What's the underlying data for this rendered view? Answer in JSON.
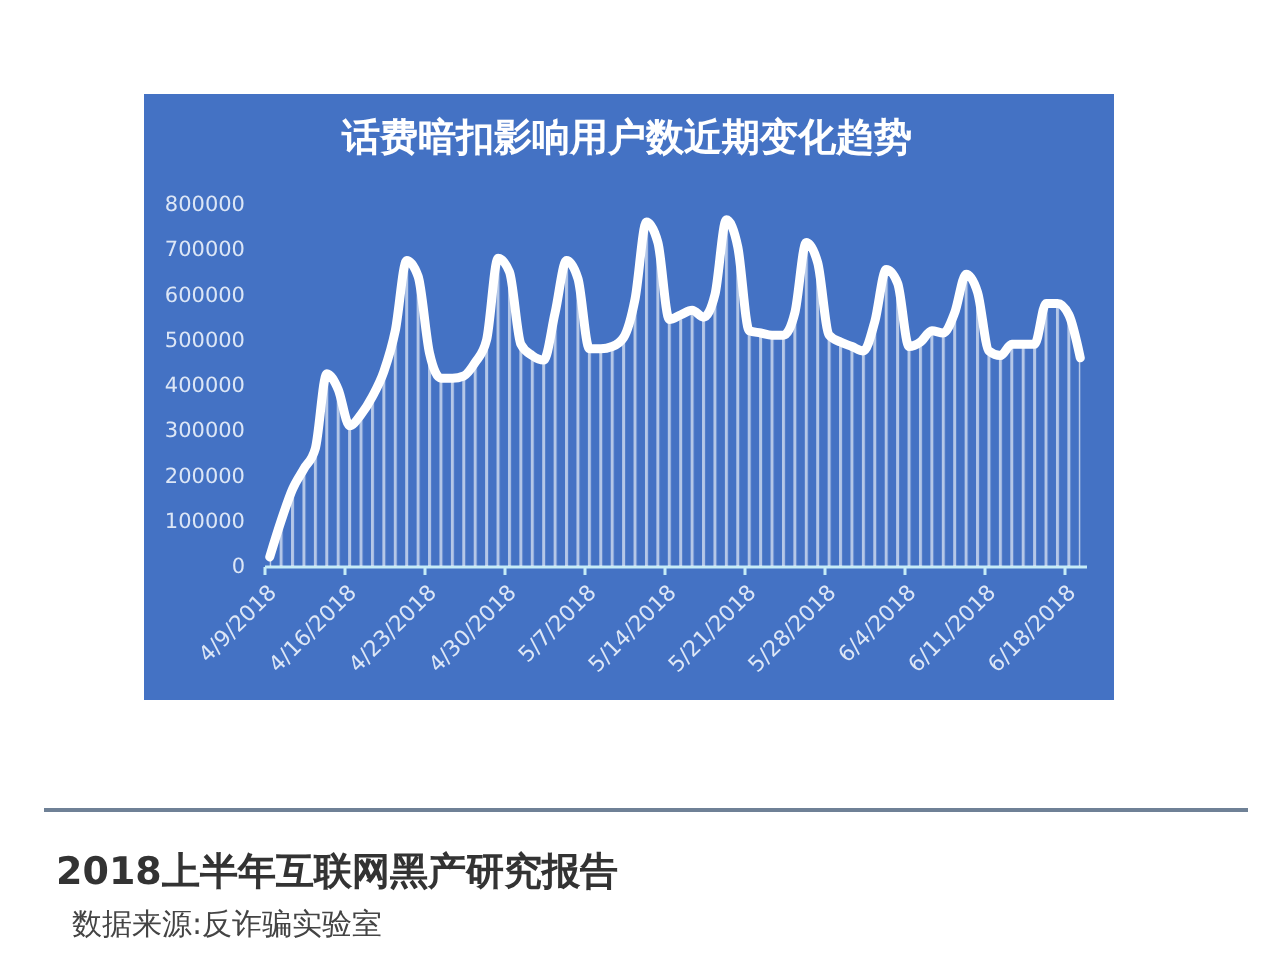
{
  "chart_data": {
    "type": "area",
    "title": "话费暗扣影响用户数近期变化趋势",
    "x": [
      "2018-04-09T12:00",
      "2018-04-10T12:00",
      "2018-04-11T12:00",
      "2018-04-12T12:00",
      "2018-04-13T12:00",
      "2018-04-14T12:00",
      "2018-04-15T12:00",
      "2018-04-16T12:00",
      "2018-04-17T12:00",
      "2018-04-18T12:00",
      "2018-04-19T12:00",
      "2018-04-20T12:00",
      "2018-04-21T12:00",
      "2018-04-22T12:00",
      "2018-04-23T12:00",
      "2018-04-24T12:00",
      "2018-04-25T12:00",
      "2018-04-26T12:00",
      "2018-04-27T12:00",
      "2018-04-28T12:00",
      "2018-04-29T12:00",
      "2018-04-30T12:00",
      "2018-05-01T12:00",
      "2018-05-02T12:00",
      "2018-05-03T12:00",
      "2018-05-04T12:00",
      "2018-05-05T12:00",
      "2018-05-06T12:00",
      "2018-05-07T12:00",
      "2018-05-08T12:00",
      "2018-05-09T12:00",
      "2018-05-10T12:00",
      "2018-05-11T12:00",
      "2018-05-12T12:00",
      "2018-05-13T12:00",
      "2018-05-14T12:00",
      "2018-05-15T12:00",
      "2018-05-16T12:00",
      "2018-05-17T12:00",
      "2018-05-18T12:00",
      "2018-05-19T12:00",
      "2018-05-20T12:00",
      "2018-05-21T12:00",
      "2018-05-22T12:00",
      "2018-05-23T12:00",
      "2018-05-24T12:00",
      "2018-05-25T12:00",
      "2018-05-26T12:00",
      "2018-05-27T12:00",
      "2018-05-28T12:00",
      "2018-05-29T12:00",
      "2018-05-30T12:00",
      "2018-05-31T12:00",
      "2018-06-01T12:00",
      "2018-06-02T12:00",
      "2018-06-03T12:00",
      "2018-06-04T12:00",
      "2018-06-05T12:00",
      "2018-06-06T12:00",
      "2018-06-07T12:00",
      "2018-06-08T12:00",
      "2018-06-09T12:00",
      "2018-06-10T12:00",
      "2018-06-11T12:00",
      "2018-06-12T12:00",
      "2018-06-13T12:00",
      "2018-06-14T12:00",
      "2018-06-15T12:00",
      "2018-06-16T12:00",
      "2018-06-17T12:00",
      "2018-06-18T12:00",
      "2018-06-19T12:00"
    ],
    "series": [
      {
        "color": "#ffffff",
        "values": [
          20000,
          100000,
          170000,
          215000,
          260000,
          425000,
          390000,
          310000,
          335000,
          375000,
          430000,
          520000,
          675000,
          640000,
          470000,
          415000,
          415000,
          420000,
          450000,
          500000,
          680000,
          650000,
          490000,
          465000,
          455000,
          560000,
          675000,
          635000,
          480000,
          480000,
          485000,
          505000,
          590000,
          760000,
          715000,
          545000,
          555000,
          565000,
          550000,
          600000,
          765000,
          705000,
          520000,
          515000,
          510000,
          510000,
          560000,
          715000,
          670000,
          510000,
          495000,
          485000,
          475000,
          540000,
          655000,
          625000,
          485000,
          495000,
          520000,
          515000,
          560000,
          645000,
          605000,
          475000,
          465000,
          490000,
          490000,
          490000,
          580000,
          580000,
          555000,
          460000
        ]
      }
    ],
    "xlim": [
      "2018-04-09",
      "2018-06-20"
    ],
    "xticks": [
      {
        "value": "2018-04-09",
        "label": "4/9/2018"
      },
      {
        "value": "2018-04-16",
        "label": "4/16/2018"
      },
      {
        "value": "2018-04-23",
        "label": "4/23/2018"
      },
      {
        "value": "2018-04-30",
        "label": "4/30/2018"
      },
      {
        "value": "2018-05-07",
        "label": "5/7/2018"
      },
      {
        "value": "2018-05-14",
        "label": "5/14/2018"
      },
      {
        "value": "2018-05-21",
        "label": "5/21/2018"
      },
      {
        "value": "2018-05-28",
        "label": "5/28/2018"
      },
      {
        "value": "2018-06-04",
        "label": "6/4/2018"
      },
      {
        "value": "2018-06-11",
        "label": "6/11/2018"
      },
      {
        "value": "2018-06-18",
        "label": "6/18/2018"
      }
    ],
    "ylim": [
      0,
      800000
    ],
    "yticks": [
      0,
      100000,
      200000,
      300000,
      400000,
      500000,
      600000,
      700000,
      800000
    ],
    "line_style": "solid",
    "annotations": [
      "2018上半年互联网黑产研究报告",
      "数据来源:反诈骗实验室"
    ]
  }
}
